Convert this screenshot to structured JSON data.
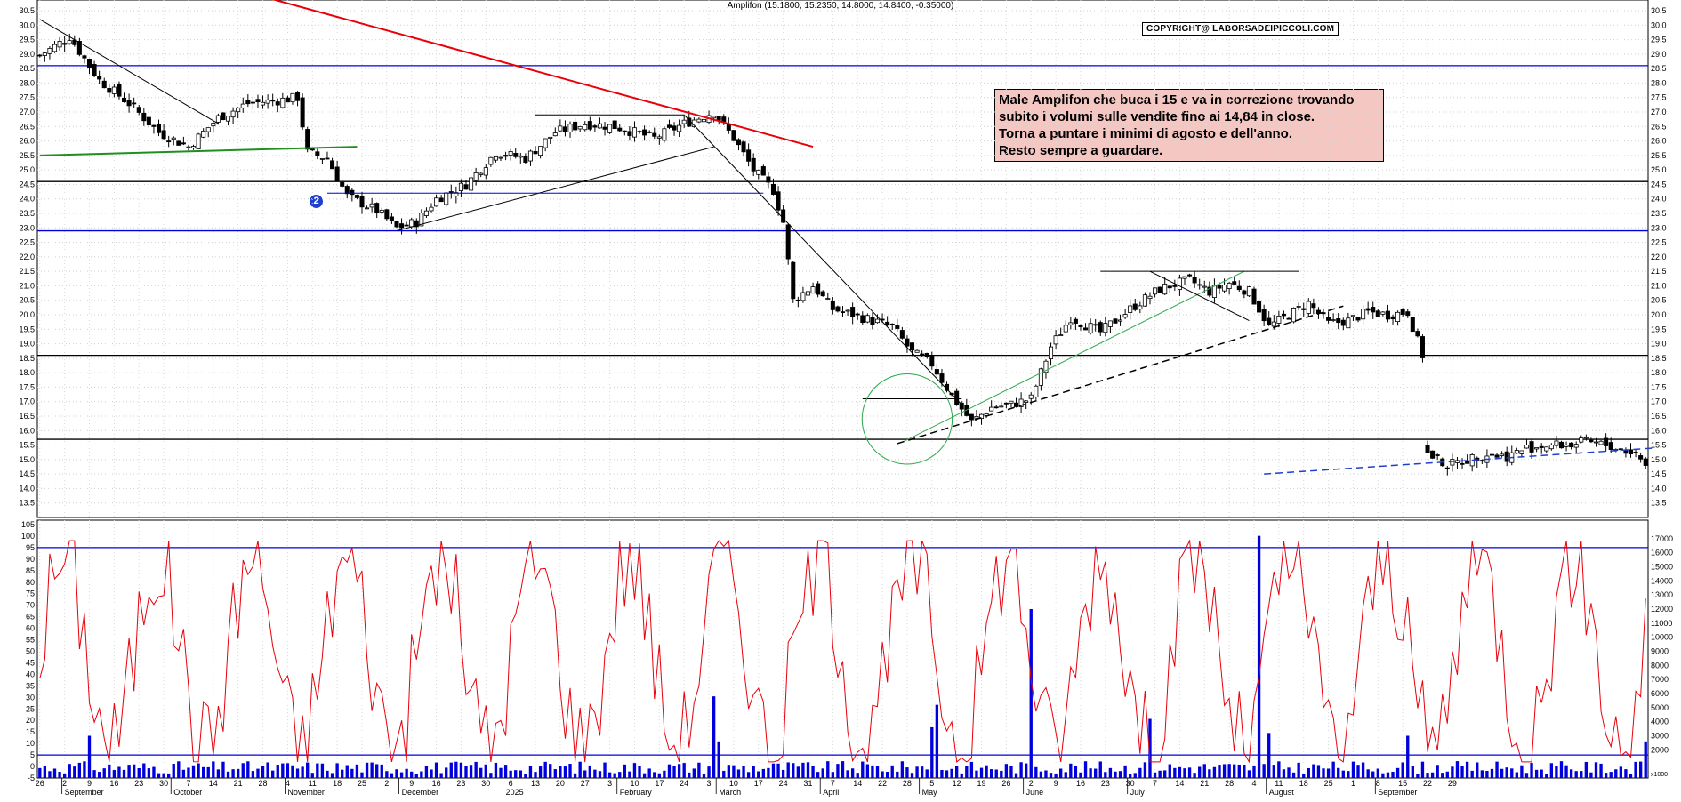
{
  "chart_data": [
    {
      "type": "candlestick",
      "title": "Amplifon (15.1800, 15.2350, 14.8000, 14.8400, -0.35000)",
      "copyright": "COPYRIGHT@ LABORSADEIPICCOLI.COM",
      "annotation": [
        "Male Amplifon che buca i 15 e va in correzione trovando",
        "subito i volumi sulle vendite fino ai 14,84 in close.",
        "Torna a puntare i minimi di agosto e dell'anno.",
        "Resto sempre a guardare."
      ],
      "badge": "2",
      "ylim": [
        13.0,
        30.5
      ],
      "y_ticks": [
        13.5,
        14.0,
        14.5,
        15.0,
        15.5,
        16.0,
        16.5,
        17.0,
        17.5,
        18.0,
        18.5,
        19.0,
        19.5,
        20.0,
        20.5,
        21.0,
        21.5,
        22.0,
        22.5,
        23.0,
        23.5,
        24.0,
        24.5,
        25.0,
        25.5,
        26.0,
        26.5,
        27.0,
        27.5,
        28.0,
        28.5,
        29.0,
        29.5,
        30.0,
        30.5
      ],
      "horizontal_levels": [
        {
          "value": 28.6,
          "color": "#0000dd"
        },
        {
          "value": 24.6,
          "color": "#000000"
        },
        {
          "value": 22.9,
          "color": "#0000dd"
        },
        {
          "value": 18.6,
          "color": "#000000"
        },
        {
          "value": 15.7,
          "color": "#000000"
        }
      ],
      "close_path": [
        [
          0,
          28.95
        ],
        [
          6,
          29.6
        ],
        [
          12,
          28.1
        ],
        [
          18,
          27.3
        ],
        [
          24,
          26.3
        ],
        [
          30,
          25.8
        ],
        [
          36,
          26.8
        ],
        [
          42,
          27.3
        ],
        [
          48,
          27.4
        ],
        [
          52,
          27.5
        ],
        [
          54,
          25.6
        ],
        [
          58,
          25.4
        ],
        [
          62,
          24.1
        ],
        [
          68,
          23.6
        ],
        [
          72,
          23.0
        ],
        [
          76,
          23.2
        ],
        [
          80,
          24.0
        ],
        [
          86,
          24.5
        ],
        [
          92,
          25.6
        ],
        [
          98,
          25.4
        ],
        [
          104,
          26.3
        ],
        [
          110,
          26.6
        ],
        [
          116,
          26.5
        ],
        [
          124,
          26.1
        ],
        [
          130,
          26.6
        ],
        [
          136,
          27.0
        ],
        [
          140,
          26.1
        ],
        [
          144,
          25.0
        ],
        [
          148,
          24.3
        ],
        [
          150,
          23.2
        ],
        [
          152,
          20.5
        ],
        [
          156,
          21.0
        ],
        [
          160,
          20.2
        ],
        [
          166,
          19.9
        ],
        [
          172,
          19.6
        ],
        [
          176,
          18.7
        ],
        [
          180,
          18.3
        ],
        [
          184,
          17.2
        ],
        [
          188,
          16.3
        ],
        [
          192,
          16.8
        ],
        [
          196,
          16.9
        ],
        [
          200,
          17.1
        ],
        [
          204,
          18.9
        ],
        [
          208,
          19.9
        ],
        [
          214,
          19.4
        ],
        [
          220,
          20.2
        ],
        [
          226,
          20.9
        ],
        [
          232,
          21.2
        ],
        [
          236,
          20.8
        ],
        [
          240,
          21.1
        ],
        [
          244,
          20.8
        ],
        [
          248,
          19.6
        ],
        [
          252,
          20.0
        ],
        [
          256,
          20.4
        ],
        [
          260,
          19.7
        ],
        [
          264,
          19.8
        ],
        [
          268,
          20.1
        ],
        [
          272,
          20.0
        ],
        [
          276,
          20.1
        ],
        [
          279,
          18.6
        ],
        [
          280,
          15.2
        ],
        [
          284,
          14.8
        ],
        [
          288,
          15.0
        ],
        [
          292,
          15.2
        ],
        [
          296,
          15.1
        ],
        [
          300,
          15.4
        ],
        [
          304,
          15.5
        ],
        [
          308,
          15.5
        ],
        [
          312,
          15.6
        ],
        [
          316,
          15.5
        ],
        [
          322,
          15.2
        ],
        [
          324,
          14.84
        ]
      ],
      "trend_lines": [
        {
          "from": [
            0,
            30.2
          ],
          "to": [
            36,
            26.6
          ],
          "color": "#000000",
          "width": 1,
          "dash": ""
        },
        {
          "from": [
            34,
            31.5
          ],
          "to": [
            156,
            25.8
          ],
          "color": "#e8000a",
          "width": 2,
          "dash": ""
        },
        {
          "from": [
            0,
            25.5
          ],
          "to": [
            64,
            25.8
          ],
          "color": "#1f8f1f",
          "width": 2,
          "dash": ""
        },
        {
          "from": [
            72,
            22.9
          ],
          "to": [
            136,
            25.8
          ],
          "color": "#000000",
          "width": 1,
          "dash": ""
        },
        {
          "from": [
            58,
            24.2
          ],
          "to": [
            146,
            24.2
          ],
          "color": "#0000dd",
          "width": 1,
          "dash": ""
        },
        {
          "from": [
            100,
            26.9
          ],
          "to": [
            130,
            26.9
          ],
          "color": "#000000",
          "width": 1,
          "dash": ""
        },
        {
          "from": [
            130,
            26.9
          ],
          "to": [
            186,
            16.9
          ],
          "color": "#000000",
          "width": 1,
          "dash": ""
        },
        {
          "from": [
            166,
            17.1
          ],
          "to": [
            186,
            17.1
          ],
          "color": "#000000",
          "width": 1,
          "dash": ""
        },
        {
          "from": [
            174,
            15.6
          ],
          "to": [
            243,
            21.5
          ],
          "color": "#2aa84a",
          "width": 1,
          "dash": ""
        },
        {
          "from": [
            173,
            15.55
          ],
          "to": [
            263,
            20.3
          ],
          "color": "#000000",
          "width": 1.5,
          "dash": "8,5"
        },
        {
          "from": [
            214,
            21.5
          ],
          "to": [
            254,
            21.5
          ],
          "color": "#000000",
          "width": 1,
          "dash": ""
        },
        {
          "from": [
            224,
            21.5
          ],
          "to": [
            244,
            19.8
          ],
          "color": "#000000",
          "width": 1,
          "dash": ""
        },
        {
          "from": [
            247,
            14.5
          ],
          "to": [
            326,
            15.4
          ],
          "color": "#1f3fd0",
          "width": 1.5,
          "dash": "8,5"
        }
      ],
      "circles": [
        {
          "cx": 175,
          "cy": 16.4,
          "r_bars": 3.5,
          "color": "#2aa84a"
        }
      ],
      "x_months": [
        {
          "label": "September",
          "i": 5
        },
        {
          "label": "October",
          "i": 27
        },
        {
          "label": "November",
          "i": 50
        },
        {
          "label": "December",
          "i": 73
        },
        {
          "label": "2025",
          "i": 94
        },
        {
          "label": "February",
          "i": 117
        },
        {
          "label": "March",
          "i": 137
        },
        {
          "label": "April",
          "i": 158
        },
        {
          "label": "May",
          "i": 178
        },
        {
          "label": "June",
          "i": 199
        },
        {
          "label": "July",
          "i": 220
        },
        {
          "label": "August",
          "i": 248
        },
        {
          "label": "September",
          "i": 270
        }
      ],
      "x_days": [
        {
          "label": "26",
          "i": 0
        },
        {
          "label": "2",
          "i": 5
        },
        {
          "label": "9",
          "i": 10
        },
        {
          "label": "16",
          "i": 15
        },
        {
          "label": "23",
          "i": 20
        },
        {
          "label": "30",
          "i": 25
        },
        {
          "label": "7",
          "i": 30
        },
        {
          "label": "14",
          "i": 35
        },
        {
          "label": "21",
          "i": 40
        },
        {
          "label": "28",
          "i": 45
        },
        {
          "label": "4",
          "i": 50
        },
        {
          "label": "11",
          "i": 55
        },
        {
          "label": "18",
          "i": 60
        },
        {
          "label": "25",
          "i": 65
        },
        {
          "label": "2",
          "i": 70
        },
        {
          "label": "9",
          "i": 75
        },
        {
          "label": "16",
          "i": 80
        },
        {
          "label": "23",
          "i": 85
        },
        {
          "label": "30",
          "i": 90
        },
        {
          "label": "6",
          "i": 95
        },
        {
          "label": "13",
          "i": 100
        },
        {
          "label": "20",
          "i": 105
        },
        {
          "label": "27",
          "i": 110
        },
        {
          "label": "3",
          "i": 115
        },
        {
          "label": "10",
          "i": 120
        },
        {
          "label": "17",
          "i": 125
        },
        {
          "label": "24",
          "i": 130
        },
        {
          "label": "3",
          "i": 135
        },
        {
          "label": "10",
          "i": 140
        },
        {
          "label": "17",
          "i": 145
        },
        {
          "label": "24",
          "i": 150
        },
        {
          "label": "31",
          "i": 155
        },
        {
          "label": "7",
          "i": 160
        },
        {
          "label": "14",
          "i": 165
        },
        {
          "label": "22",
          "i": 170
        },
        {
          "label": "28",
          "i": 175
        },
        {
          "label": "5",
          "i": 180
        },
        {
          "label": "12",
          "i": 185
        },
        {
          "label": "19",
          "i": 190
        },
        {
          "label": "26",
          "i": 195
        },
        {
          "label": "2",
          "i": 200
        },
        {
          "label": "9",
          "i": 205
        },
        {
          "label": "16",
          "i": 210
        },
        {
          "label": "23",
          "i": 215
        },
        {
          "label": "30",
          "i": 220
        },
        {
          "label": "7",
          "i": 225
        },
        {
          "label": "14",
          "i": 230
        },
        {
          "label": "21",
          "i": 235
        },
        {
          "label": "28",
          "i": 240
        },
        {
          "label": "4",
          "i": 245
        },
        {
          "label": "11",
          "i": 250
        },
        {
          "label": "18",
          "i": 255
        },
        {
          "label": "25",
          "i": 260
        },
        {
          "label": "1",
          "i": 265
        },
        {
          "label": "8",
          "i": 270
        },
        {
          "label": "15",
          "i": 275
        },
        {
          "label": "22",
          "i": 280
        },
        {
          "label": "29",
          "i": 285
        }
      ],
      "bars_total": 325
    },
    {
      "type": "line",
      "indicator": "oscillator",
      "ylim": [
        -5,
        105
      ],
      "y_ticks": [
        -5,
        0,
        5,
        10,
        15,
        20,
        25,
        30,
        35,
        40,
        45,
        50,
        55,
        60,
        65,
        70,
        75,
        80,
        85,
        90,
        95,
        100,
        105
      ],
      "levels": [
        {
          "value": 95,
          "color": "#0000dd"
        },
        {
          "value": 5,
          "color": "#0000dd"
        }
      ],
      "color": "#e8000a"
    },
    {
      "type": "bar",
      "indicator": "volume",
      "ylim": [
        0,
        18000
      ],
      "y_ticks": [
        2000,
        3000,
        4000,
        5000,
        6000,
        7000,
        8000,
        9000,
        10000,
        11000,
        12000,
        13000,
        14000,
        15000,
        16000,
        17000
      ],
      "unit_label": "x1000",
      "color": "#0000dd",
      "spikes": [
        {
          "i": 10,
          "v": 3000
        },
        {
          "i": 136,
          "v": 5800
        },
        {
          "i": 137,
          "v": 2600
        },
        {
          "i": 180,
          "v": 3600
        },
        {
          "i": 181,
          "v": 5200
        },
        {
          "i": 200,
          "v": 12000
        },
        {
          "i": 224,
          "v": 4200
        },
        {
          "i": 246,
          "v": 17200
        },
        {
          "i": 248,
          "v": 3200
        },
        {
          "i": 276,
          "v": 3000
        },
        {
          "i": 324,
          "v": 2600
        }
      ]
    }
  ]
}
